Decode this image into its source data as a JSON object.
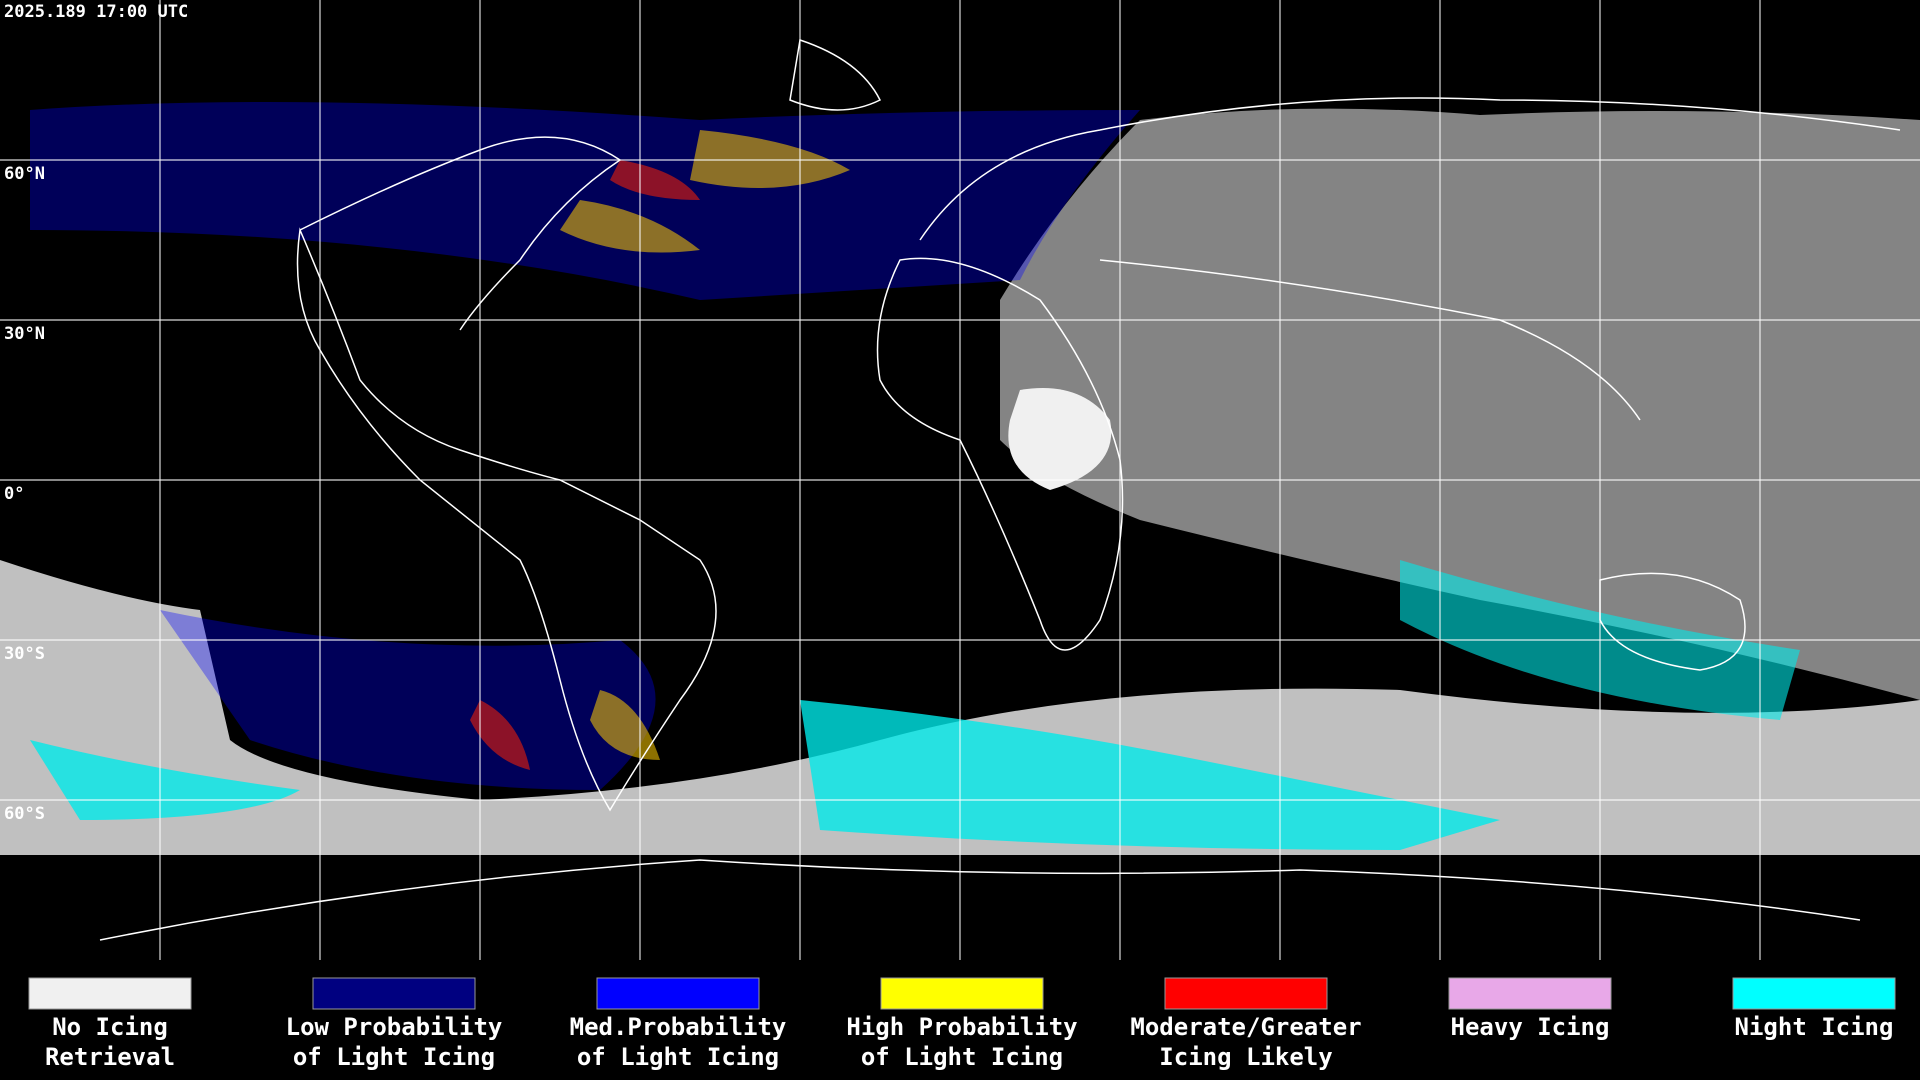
{
  "header": {
    "timestamp": "2025.189 17:00 UTC"
  },
  "map": {
    "latitude_labels": [
      "60°N",
      "30°N",
      "0°",
      "30°S",
      "60°S"
    ]
  },
  "legend": {
    "items": [
      {
        "color": "#f0f0f0",
        "lines": [
          "No Icing",
          "Retrieval"
        ]
      },
      {
        "color": "#000080",
        "lines": [
          "Low Probability",
          "of Light Icing"
        ]
      },
      {
        "color": "#0000ff",
        "lines": [
          "Med.Probability",
          "of Light Icing"
        ]
      },
      {
        "color": "#ffff00",
        "lines": [
          "High Probability",
          "of Light Icing"
        ]
      },
      {
        "color": "#ff0000",
        "lines": [
          "Moderate/Greater",
          "Icing Likely"
        ]
      },
      {
        "color": "#e8a8e8",
        "lines": [
          "Heavy Icing"
        ]
      },
      {
        "color": "#00ffff",
        "lines": [
          "Night Icing"
        ]
      }
    ]
  }
}
